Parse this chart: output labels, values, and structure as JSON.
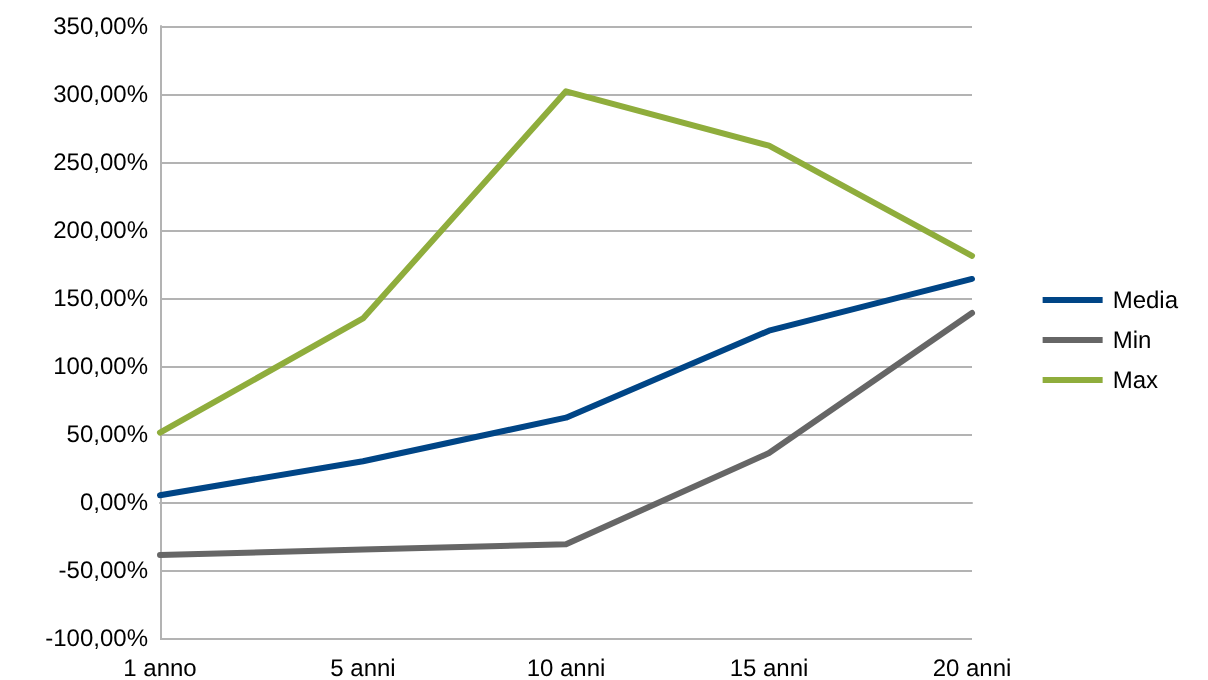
{
  "chart_data": {
    "type": "line",
    "categories": [
      "1 anno",
      "5 anni",
      "10 anni",
      "15 anni",
      "20 anni"
    ],
    "series": [
      {
        "name": "Media",
        "color": "#004586",
        "values": [
          5,
          30,
          62,
          126,
          164
        ]
      },
      {
        "name": "Min",
        "color": "#666666",
        "values": [
          -39,
          -35,
          -31,
          36,
          139
        ]
      },
      {
        "name": "Max",
        "color": "#8fad3c",
        "values": [
          51,
          135,
          302,
          262,
          181
        ]
      }
    ],
    "ylim": [
      -100,
      350
    ],
    "yticks": [
      {
        "value": -100,
        "label": "-100,00%"
      },
      {
        "value": -50,
        "label": "-50,00%"
      },
      {
        "value": 0,
        "label": "0,00%"
      },
      {
        "value": 50,
        "label": "50,00%"
      },
      {
        "value": 100,
        "label": "100,00%"
      },
      {
        "value": 150,
        "label": "150,00%"
      },
      {
        "value": 200,
        "label": "200,00%"
      },
      {
        "value": 250,
        "label": "250,00%"
      },
      {
        "value": 300,
        "label": "300,00%"
      },
      {
        "value": 350,
        "label": "350,00%"
      }
    ],
    "grid": "y",
    "legend": "right",
    "marker": "none",
    "line_style": "solid"
  }
}
